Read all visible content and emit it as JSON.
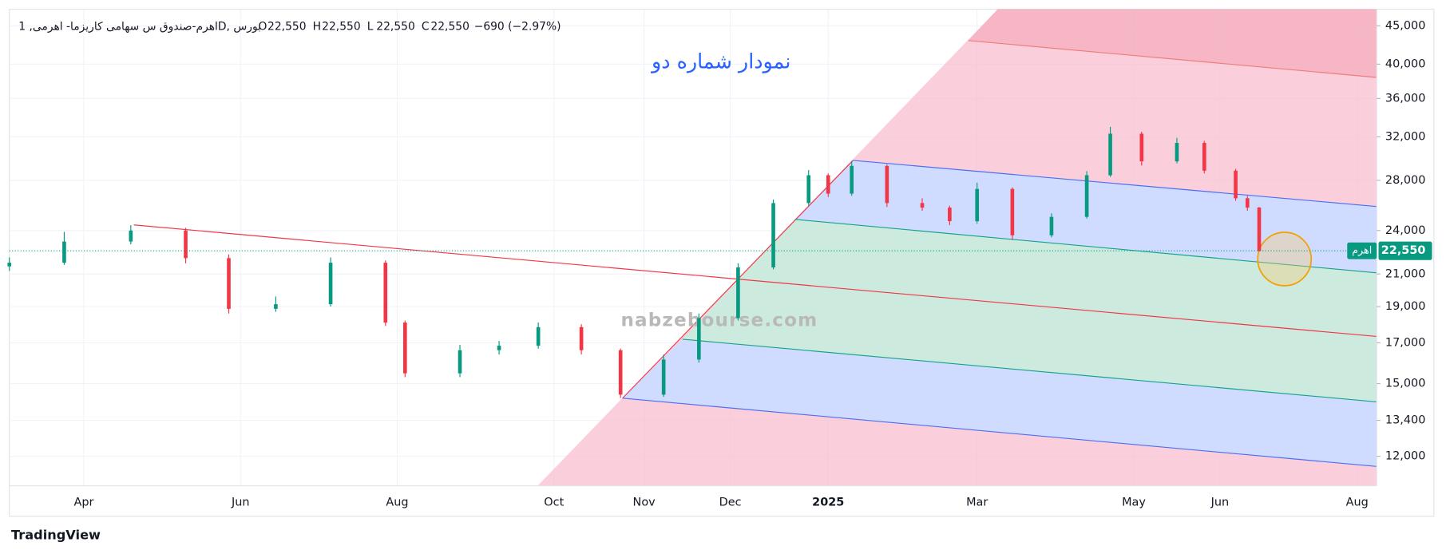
{
  "chart_data": {
    "type": "candlestick",
    "title": "اهرم-صندوق س سهامی کاریزما- اهرمی, 1D, بورس",
    "ohlc_legend": [
      {
        "label": "O",
        "value": "22,550"
      },
      {
        "label": "H",
        "value": "22,550"
      },
      {
        "label": "L",
        "value": "22,550"
      },
      {
        "label": "C",
        "value": "22,550"
      }
    ],
    "change": "−690 (−2.97%)",
    "annotation": "نمودار شماره دو",
    "x": [
      0,
      14,
      31,
      45,
      56,
      68,
      82,
      96,
      101,
      115,
      125,
      135,
      146,
      156,
      167,
      176,
      186,
      195,
      204,
      209,
      215,
      224,
      233,
      240,
      247,
      256,
      266,
      275,
      281,
      289,
      298,
      305,
      313,
      316,
      319
    ],
    "open": [
      21500,
      21740,
      23200,
      24000,
      22050,
      18870,
      19140,
      21740,
      18090,
      15480,
      16620,
      16850,
      17840,
      16620,
      14500,
      16150,
      18340,
      21430,
      26110,
      28440,
      26880,
      29270,
      26110,
      25750,
      24700,
      27270,
      23650,
      25030,
      28440,
      32310,
      29680,
      31410,
      28840,
      26500,
      25750
    ],
    "high": [
      22100,
      23900,
      24400,
      24200,
      22300,
      19600,
      22100,
      21900,
      18200,
      16900,
      17100,
      18100,
      18000,
      16700,
      16400,
      18600,
      21700,
      26400,
      28900,
      28600,
      29700,
      29400,
      26500,
      25900,
      27800,
      27400,
      25300,
      28800,
      33000,
      32500,
      31900,
      31600,
      29000,
      26700,
      25800
    ],
    "low": [
      21200,
      21600,
      23000,
      21700,
      18600,
      18700,
      19000,
      17900,
      15300,
      15300,
      16400,
      16700,
      16400,
      14350,
      14400,
      16000,
      18200,
      21300,
      25900,
      26600,
      26700,
      25800,
      25500,
      24400,
      24500,
      23300,
      23500,
      24900,
      28300,
      29300,
      29500,
      28600,
      26300,
      25500,
      22500
    ],
    "close": [
      21740,
      23200,
      24000,
      22050,
      18870,
      19140,
      21740,
      18090,
      15480,
      16620,
      16850,
      17840,
      16620,
      14500,
      16150,
      18340,
      21430,
      26110,
      28440,
      26880,
      29270,
      26110,
      25750,
      24700,
      27270,
      23650,
      25030,
      28440,
      32310,
      29680,
      31410,
      28840,
      26500,
      25750,
      22550
    ],
    "up_color": "#089981",
    "down_color": "#f23645",
    "log_scale": true,
    "grid": true,
    "xlim": [
      0,
      349
    ],
    "xticks": [
      {
        "value": 19,
        "label": "Apr"
      },
      {
        "value": 59,
        "label": "Jun"
      },
      {
        "value": 99,
        "label": "Aug"
      },
      {
        "value": 139,
        "label": "Oct"
      },
      {
        "value": 162,
        "label": "Nov"
      },
      {
        "value": 184,
        "label": "Dec"
      },
      {
        "value": 209,
        "label": "2025"
      },
      {
        "value": 247,
        "label": "Mar"
      },
      {
        "value": 287,
        "label": "May"
      },
      {
        "value": 309,
        "label": "Jun"
      },
      {
        "value": 344,
        "label": "Aug"
      }
    ],
    "ylim": [
      10960,
      47350
    ],
    "yticks": [
      {
        "value": 12000,
        "label": "12,000"
      },
      {
        "value": 13400,
        "label": "13,400"
      },
      {
        "value": 15000,
        "label": "15,000"
      },
      {
        "value": 17000,
        "label": "17,000"
      },
      {
        "value": 19000,
        "label": "19,000"
      },
      {
        "value": 21000,
        "label": "21,000"
      },
      {
        "value": 24000,
        "label": "24,000"
      },
      {
        "value": 28000,
        "label": "28,000"
      },
      {
        "value": 32000,
        "label": "32,000"
      },
      {
        "value": 36000,
        "label": "36,000"
      },
      {
        "value": 40000,
        "label": "40,000"
      },
      {
        "value": 45000,
        "label": "45,000"
      }
    ],
    "last_price": {
      "value": 22550,
      "label": "22,550"
    },
    "last_price_tag": "اهرم",
    "watermark": "nabzebourse.com",
    "brand": "TradingView"
  }
}
